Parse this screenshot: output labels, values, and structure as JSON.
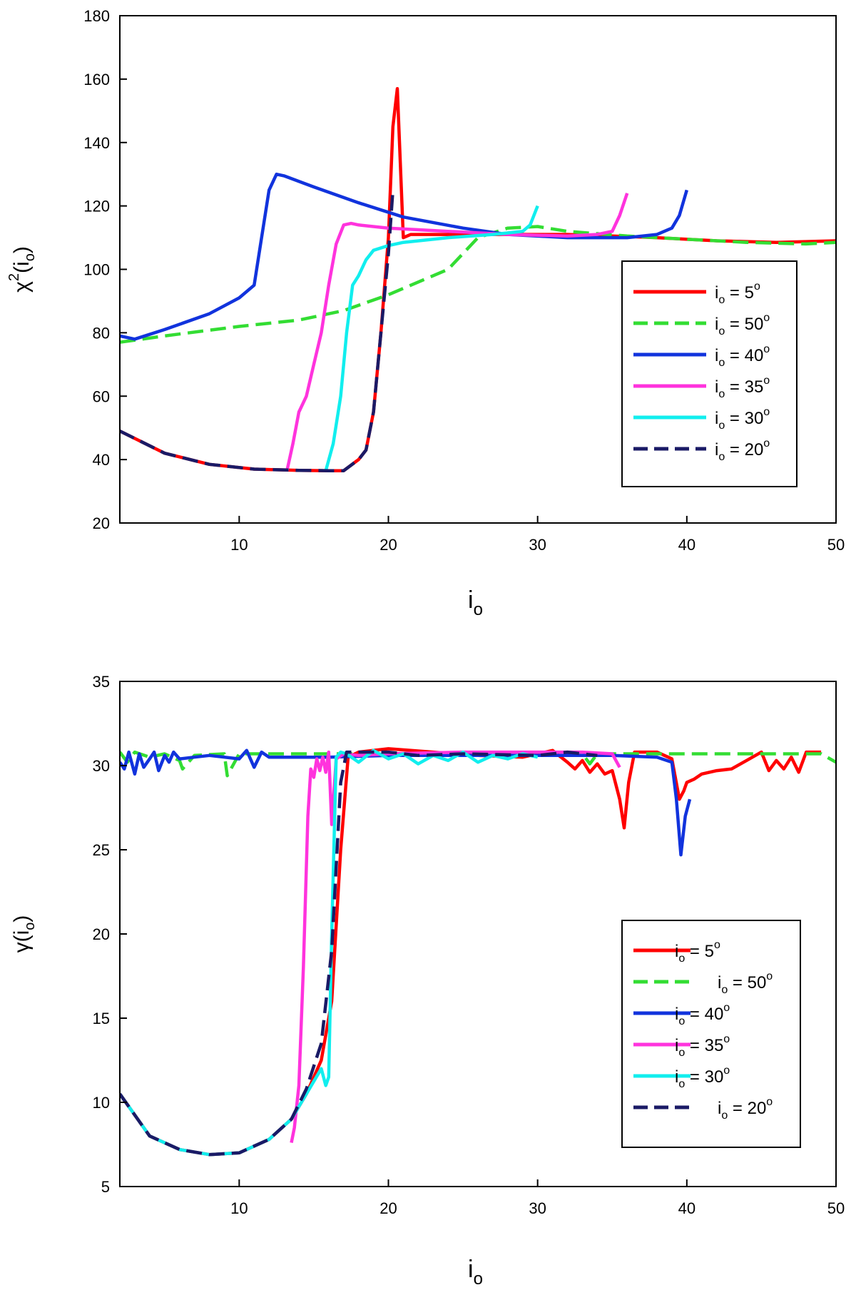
{
  "chart_data": [
    {
      "type": "line",
      "xlabel": "i",
      "xlabel_sub": "o",
      "ylabel": "χ",
      "ylabel_sup": "2",
      "ylabel_arg": "(i",
      "ylabel_arg_sub": "o",
      "ylabel_close": ")",
      "xlim": [
        2,
        50
      ],
      "ylim": [
        20,
        180
      ],
      "xticks": [
        10,
        20,
        30,
        40,
        50
      ],
      "yticks": [
        20,
        40,
        60,
        80,
        100,
        120,
        140,
        160,
        180
      ],
      "legend": "right",
      "grid": false,
      "series": [
        {
          "name": "5",
          "color": "#ff0000",
          "dash": "solid",
          "x": [
            2,
            5,
            8,
            11,
            14,
            16,
            17,
            18,
            18.5,
            19,
            19.5,
            20,
            20.3,
            20.6,
            21,
            21.5,
            24,
            28,
            32,
            35,
            38,
            42,
            46,
            50
          ],
          "y": [
            49,
            42,
            38.5,
            37,
            36.6,
            36.5,
            36.5,
            40,
            43,
            55,
            80,
            110,
            145,
            157,
            110,
            111,
            111,
            111,
            111,
            110.5,
            110,
            109,
            108.5,
            109
          ]
        },
        {
          "name": "50",
          "color": "#33dd33",
          "dash": "dashed",
          "x": [
            2,
            5,
            10,
            14,
            17,
            20,
            22,
            24,
            25,
            26,
            28,
            30,
            32,
            36,
            40,
            44,
            48,
            50
          ],
          "y": [
            77,
            79,
            82,
            84,
            87,
            92,
            96,
            100,
            105,
            110,
            113,
            113.5,
            112,
            110.5,
            109.5,
            108.5,
            108,
            108.5
          ]
        },
        {
          "name": "40",
          "color": "#1133dd",
          "dash": "solid",
          "x": [
            2,
            3,
            5,
            8,
            10,
            11,
            11.5,
            12,
            12.5,
            13,
            15,
            18,
            21,
            25,
            28,
            32,
            36,
            38,
            39,
            39.5,
            40
          ],
          "y": [
            79,
            78,
            81,
            86,
            91,
            95,
            110,
            125,
            130,
            129.5,
            126,
            121,
            116.5,
            113,
            111,
            110,
            110,
            111,
            113,
            117,
            125
          ]
        },
        {
          "name": "35",
          "color": "#ff33dd",
          "dash": "solid",
          "x": [
            13.2,
            13.6,
            14,
            14.5,
            15,
            15.5,
            16,
            16.5,
            17,
            17.5,
            18,
            20,
            24,
            28,
            32,
            34,
            35,
            35.5,
            36
          ],
          "y": [
            36.5,
            45,
            55,
            60,
            70,
            80,
            95,
            108,
            114,
            114.5,
            114,
            113,
            112,
            111,
            110.5,
            111,
            112,
            117,
            124
          ]
        },
        {
          "name": "30",
          "color": "#11eeee",
          "dash": "solid",
          "x": [
            15.8,
            16.3,
            16.8,
            17.2,
            17.6,
            18,
            18.5,
            19,
            20,
            21,
            24,
            27,
            29,
            29.5,
            30
          ],
          "y": [
            36.5,
            45,
            60,
            80,
            95,
            98,
            103,
            106,
            107.5,
            108.5,
            110,
            111,
            112,
            114,
            120
          ]
        },
        {
          "name": "20",
          "color": "#1a1a66",
          "dash": "dashed",
          "x": [
            2,
            5,
            8,
            11,
            14,
            16,
            17,
            18,
            18.5,
            19,
            19.5,
            20,
            20.3
          ],
          "y": [
            49,
            42,
            38.5,
            37,
            36.6,
            36.5,
            36.5,
            40,
            43,
            55,
            80,
            105,
            125
          ]
        }
      ]
    },
    {
      "type": "line",
      "xlabel": "i",
      "xlabel_sub": "o",
      "ylabel": "γ",
      "ylabel_arg": "(i",
      "ylabel_arg_sub": "o",
      "ylabel_close": ")",
      "xlim": [
        2,
        50
      ],
      "ylim": [
        5,
        35
      ],
      "xticks": [
        10,
        20,
        30,
        40,
        50
      ],
      "yticks": [
        5,
        10,
        15,
        20,
        25,
        30,
        35
      ],
      "legend": "right",
      "grid": false,
      "series": [
        {
          "name": "5",
          "color": "#ff0000",
          "dash": "solid",
          "x": [
            2,
            4,
            6,
            8,
            10,
            12,
            13.5,
            14.5,
            15.5,
            16.2,
            16.8,
            17.3,
            18,
            20,
            23,
            26,
            29,
            31,
            32,
            32.5,
            33,
            33.5,
            34,
            34.5,
            35,
            35.5,
            35.8,
            36.1,
            36.5,
            38,
            39,
            39.5,
            39.8,
            40,
            40.5,
            41,
            42,
            43,
            44,
            45,
            45.5,
            46,
            46.5,
            47,
            47.5,
            48,
            49
          ],
          "y": [
            10.5,
            8,
            7.2,
            6.9,
            7,
            7.8,
            9,
            10.5,
            12.5,
            16,
            25,
            30.5,
            30.8,
            31,
            30.8,
            30.6,
            30.5,
            30.9,
            30.2,
            29.8,
            30.3,
            29.6,
            30.1,
            29.5,
            29.7,
            28,
            26.3,
            29,
            30.8,
            30.8,
            30.4,
            28,
            28.5,
            29,
            29.2,
            29.5,
            29.7,
            29.8,
            30.3,
            30.8,
            29.7,
            30.3,
            29.8,
            30.5,
            29.6,
            30.8,
            30.8
          ]
        },
        {
          "name": "50",
          "color": "#33dd33",
          "dash": "dashed",
          "x": [
            2,
            2.5,
            3,
            4,
            5,
            6,
            6.2,
            7,
            9,
            9.2,
            10,
            15,
            20,
            25,
            30,
            33,
            33.5,
            34,
            40,
            45,
            49,
            50
          ],
          "y": [
            30.8,
            30.2,
            30.8,
            30.5,
            30.7,
            30.3,
            29.8,
            30.6,
            30.7,
            29.4,
            30.7,
            30.7,
            30.7,
            30.7,
            30.7,
            30.7,
            30.1,
            30.7,
            30.7,
            30.7,
            30.7,
            30.2
          ]
        },
        {
          "name": "40",
          "color": "#1133dd",
          "dash": "solid",
          "x": [
            2,
            2.3,
            2.6,
            3,
            3.3,
            3.6,
            4,
            4.3,
            4.6,
            5,
            5.3,
            5.6,
            6,
            7,
            8,
            9,
            10,
            10.5,
            11,
            11.5,
            12,
            13,
            16,
            20,
            25,
            30,
            35,
            38,
            39,
            39.3,
            39.6,
            39.9,
            40.2
          ],
          "y": [
            30.2,
            29.8,
            30.8,
            29.5,
            30.7,
            29.9,
            30.4,
            30.8,
            29.7,
            30.6,
            30.2,
            30.8,
            30.4,
            30.5,
            30.6,
            30.5,
            30.4,
            30.9,
            29.9,
            30.8,
            30.5,
            30.5,
            30.5,
            30.6,
            30.6,
            30.6,
            30.6,
            30.5,
            30.2,
            28,
            24.7,
            27,
            28
          ]
        },
        {
          "name": "35",
          "color": "#ff33dd",
          "dash": "solid",
          "x": [
            13.5,
            13.7,
            14,
            14.3,
            14.6,
            14.8,
            15,
            15.2,
            15.4,
            15.6,
            15.8,
            16,
            16.2,
            16.5,
            17,
            18,
            20,
            25,
            30,
            33,
            35,
            35.5
          ],
          "y": [
            7.6,
            8.5,
            11,
            18,
            27,
            29.8,
            29.3,
            30.4,
            29.7,
            30.5,
            29.6,
            30.8,
            26.5,
            30.4,
            30.7,
            30.6,
            30.7,
            30.8,
            30.8,
            30.8,
            30.7,
            29.9
          ]
        },
        {
          "name": "30",
          "color": "#11eeee",
          "dash": "solid",
          "x": [
            2,
            4,
            6,
            8,
            10,
            12,
            13.5,
            14.5,
            15.5,
            15.8,
            16,
            16.2,
            16.5,
            16.8,
            17.2,
            18,
            19,
            20,
            21,
            22,
            23,
            24,
            25,
            26,
            27,
            28,
            29,
            30
          ],
          "y": [
            10.5,
            8,
            7.2,
            6.9,
            7,
            7.8,
            9,
            10.5,
            12,
            11,
            11.5,
            20,
            30.5,
            30.8,
            30.7,
            30.2,
            30.9,
            30.4,
            30.7,
            30.1,
            30.6,
            30.3,
            30.8,
            30.2,
            30.6,
            30.4,
            30.7,
            30.5
          ]
        },
        {
          "name": "20",
          "color": "#1a1a66",
          "dash": "dashed",
          "x": [
            2,
            4,
            6,
            8,
            10,
            12,
            13.5,
            14.5,
            15.5,
            16.2,
            16.8,
            17.2,
            18,
            20,
            22,
            25,
            30,
            32,
            34
          ],
          "y": [
            10.5,
            8,
            7.2,
            6.9,
            7,
            7.8,
            9,
            10.8,
            13.5,
            19,
            29,
            30.8,
            30.8,
            30.8,
            30.6,
            30.7,
            30.6,
            30.8,
            30.6
          ]
        }
      ]
    }
  ],
  "legend_labels": {
    "prefix": "i",
    "prefix_sub": "o",
    "equals": " = ",
    "degree": "o"
  }
}
